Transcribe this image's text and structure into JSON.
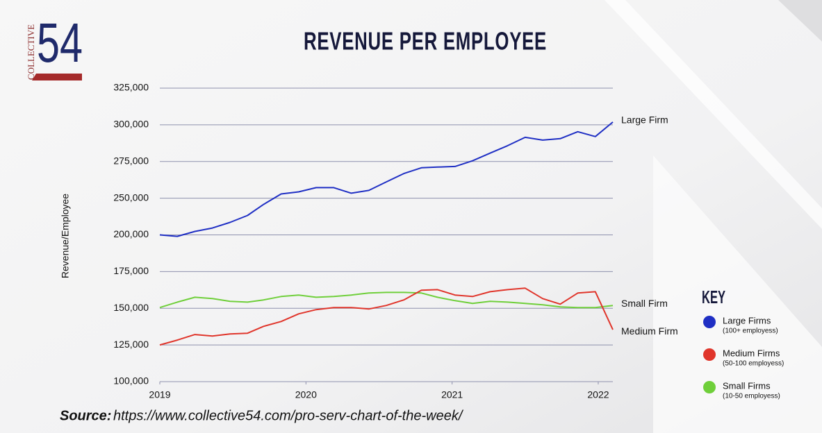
{
  "logo": {
    "text": "COLLECTIVE",
    "number": "54"
  },
  "chart_data": {
    "type": "line",
    "title": "REVENUE PER EMPLOYEE",
    "y_label": "Revenue/Employee",
    "x": [
      2019,
      2019.12,
      2019.24,
      2019.36,
      2019.48,
      2019.6,
      2019.71,
      2019.83,
      2019.95,
      2020.07,
      2020.19,
      2020.31,
      2020.43,
      2020.55,
      2020.67,
      2020.79,
      2020.9,
      2021.02,
      2021.14,
      2021.26,
      2021.38,
      2021.5,
      2021.62,
      2021.74,
      2021.86,
      2021.98,
      2022.1
    ],
    "xlim": [
      2019,
      2022.1
    ],
    "xticks": [
      2019,
      2020,
      2021,
      2022
    ],
    "ylim": [
      100000,
      325000
    ],
    "yticks": [
      {
        "value": 100000,
        "label": "100,000"
      },
      {
        "value": 125000,
        "label": "125,000"
      },
      {
        "value": 150000,
        "label": "150,000"
      },
      {
        "value": 175000,
        "label": "175,000"
      },
      {
        "value": 200000,
        "label": "200,000"
      },
      {
        "value": 250000,
        "label": "250,000"
      },
      {
        "value": 275000,
        "label": "275,000"
      },
      {
        "value": 300000,
        "label": "300,000"
      },
      {
        "value": 325000,
        "label": "325,000"
      }
    ],
    "grid": true,
    "series": [
      {
        "name": "Large Firm",
        "color": "#1f2fc4",
        "values": [
          200000,
          199000,
          204700,
          209400,
          217000,
          226500,
          241500,
          252900,
          254300,
          257200,
          257200,
          253400,
          255300,
          261100,
          266800,
          270700,
          271200,
          271600,
          275500,
          280700,
          285800,
          291500,
          289600,
          290600,
          295300,
          292000,
          301900
        ]
      },
      {
        "name": "Small Firm",
        "color": "#6fcf3a",
        "values": [
          150500,
          154200,
          157500,
          156600,
          154700,
          154200,
          155700,
          158000,
          159000,
          157500,
          158000,
          159000,
          160400,
          160800,
          160800,
          160400,
          157500,
          155200,
          153300,
          154700,
          154200,
          153300,
          152400,
          150900,
          150500,
          150500,
          151900
        ]
      },
      {
        "name": "Medium Firm",
        "color": "#e0352b",
        "values": [
          125000,
          128300,
          132100,
          131100,
          132500,
          133000,
          137700,
          141000,
          146200,
          149100,
          150500,
          150500,
          149500,
          151900,
          155700,
          162300,
          162700,
          159000,
          158000,
          161300,
          162700,
          163700,
          156600,
          152800,
          160400,
          161300,
          135400
        ]
      }
    ],
    "key": {
      "title": "KEY",
      "items": [
        {
          "series": 0,
          "label": "Large Firms",
          "note": "(100+ employess)"
        },
        {
          "series": 2,
          "label": "Medium Firms",
          "note": "(50-100 employess)"
        },
        {
          "series": 1,
          "label": "Small Firms",
          "note": "(10-50 employess)"
        }
      ]
    }
  },
  "source": {
    "label": "Source:",
    "url": "https://www.collective54.com/pro-serv-chart-of-the-week/"
  }
}
